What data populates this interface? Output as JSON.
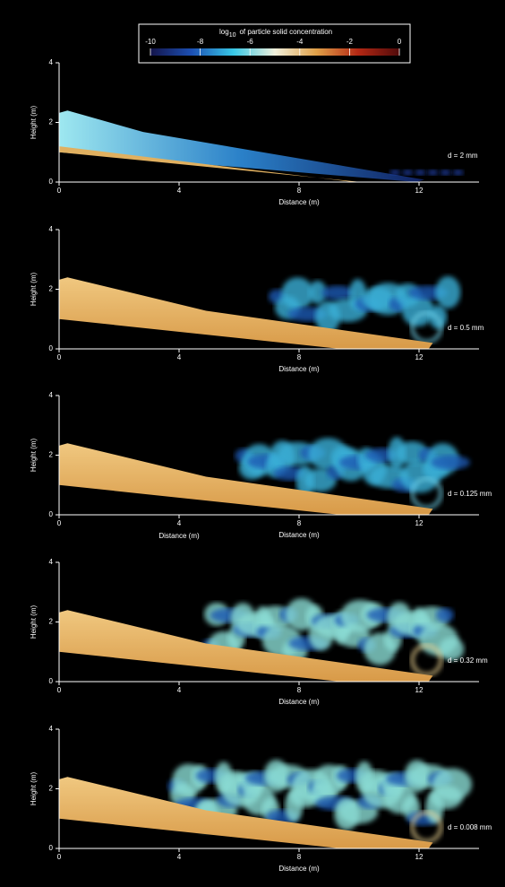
{
  "colorbar": {
    "title": "log",
    "title_sub": "10",
    "title_rest": "of particle solid concentration",
    "lim": [
      -10,
      0
    ],
    "ticks": [
      -10,
      -8,
      -6,
      -4,
      -2,
      0
    ],
    "colors": [
      "#14144a",
      "#1c50b4",
      "#38c8e6",
      "#f0f0dc",
      "#e0a048",
      "#b42814",
      "#500a0a"
    ]
  },
  "chart_data": [
    {
      "type": "field",
      "xlabel": "Distance (m)",
      "ylabel": "Height (m)",
      "xlim": [
        0,
        14
      ],
      "xticks": [
        0,
        4,
        8,
        12
      ],
      "ylim": [
        0,
        4
      ],
      "yticks": [
        0,
        2,
        4
      ],
      "annotation": "d = 2 mm"
    },
    {
      "type": "field",
      "xlabel": "Distance (m)",
      "ylabel": "Height (m)",
      "xlim": [
        0,
        14
      ],
      "xticks": [
        0,
        4,
        8,
        12
      ],
      "ylim": [
        0,
        4
      ],
      "yticks": [
        0,
        2,
        4
      ],
      "annotation": "d = 0.5 mm"
    },
    {
      "type": "field",
      "xlabel": "Distance (m)",
      "ylabel": "Height (m)",
      "xlim": [
        0,
        14
      ],
      "xticks": [
        0,
        4,
        8,
        12
      ],
      "ylim": [
        0,
        4
      ],
      "yticks": [
        0,
        2,
        4
      ],
      "annotation": "d = 0.125 mm",
      "extra_label": "Distance (m)"
    },
    {
      "type": "field",
      "xlabel": "Distance (m)",
      "ylabel": "Height (m)",
      "xlim": [
        0,
        14
      ],
      "xticks": [
        0,
        4,
        8,
        12
      ],
      "ylim": [
        0,
        4
      ],
      "yticks": [
        0,
        2,
        4
      ],
      "annotation": "d = 0.32 mm"
    },
    {
      "type": "field",
      "xlabel": "Distance (m)",
      "ylabel": "Height (m)",
      "xlim": [
        0,
        14
      ],
      "xticks": [
        0,
        4,
        8,
        12
      ],
      "ylim": [
        0,
        4
      ],
      "yticks": [
        0,
        2,
        4
      ],
      "annotation": "d = 0.008 mm"
    }
  ]
}
